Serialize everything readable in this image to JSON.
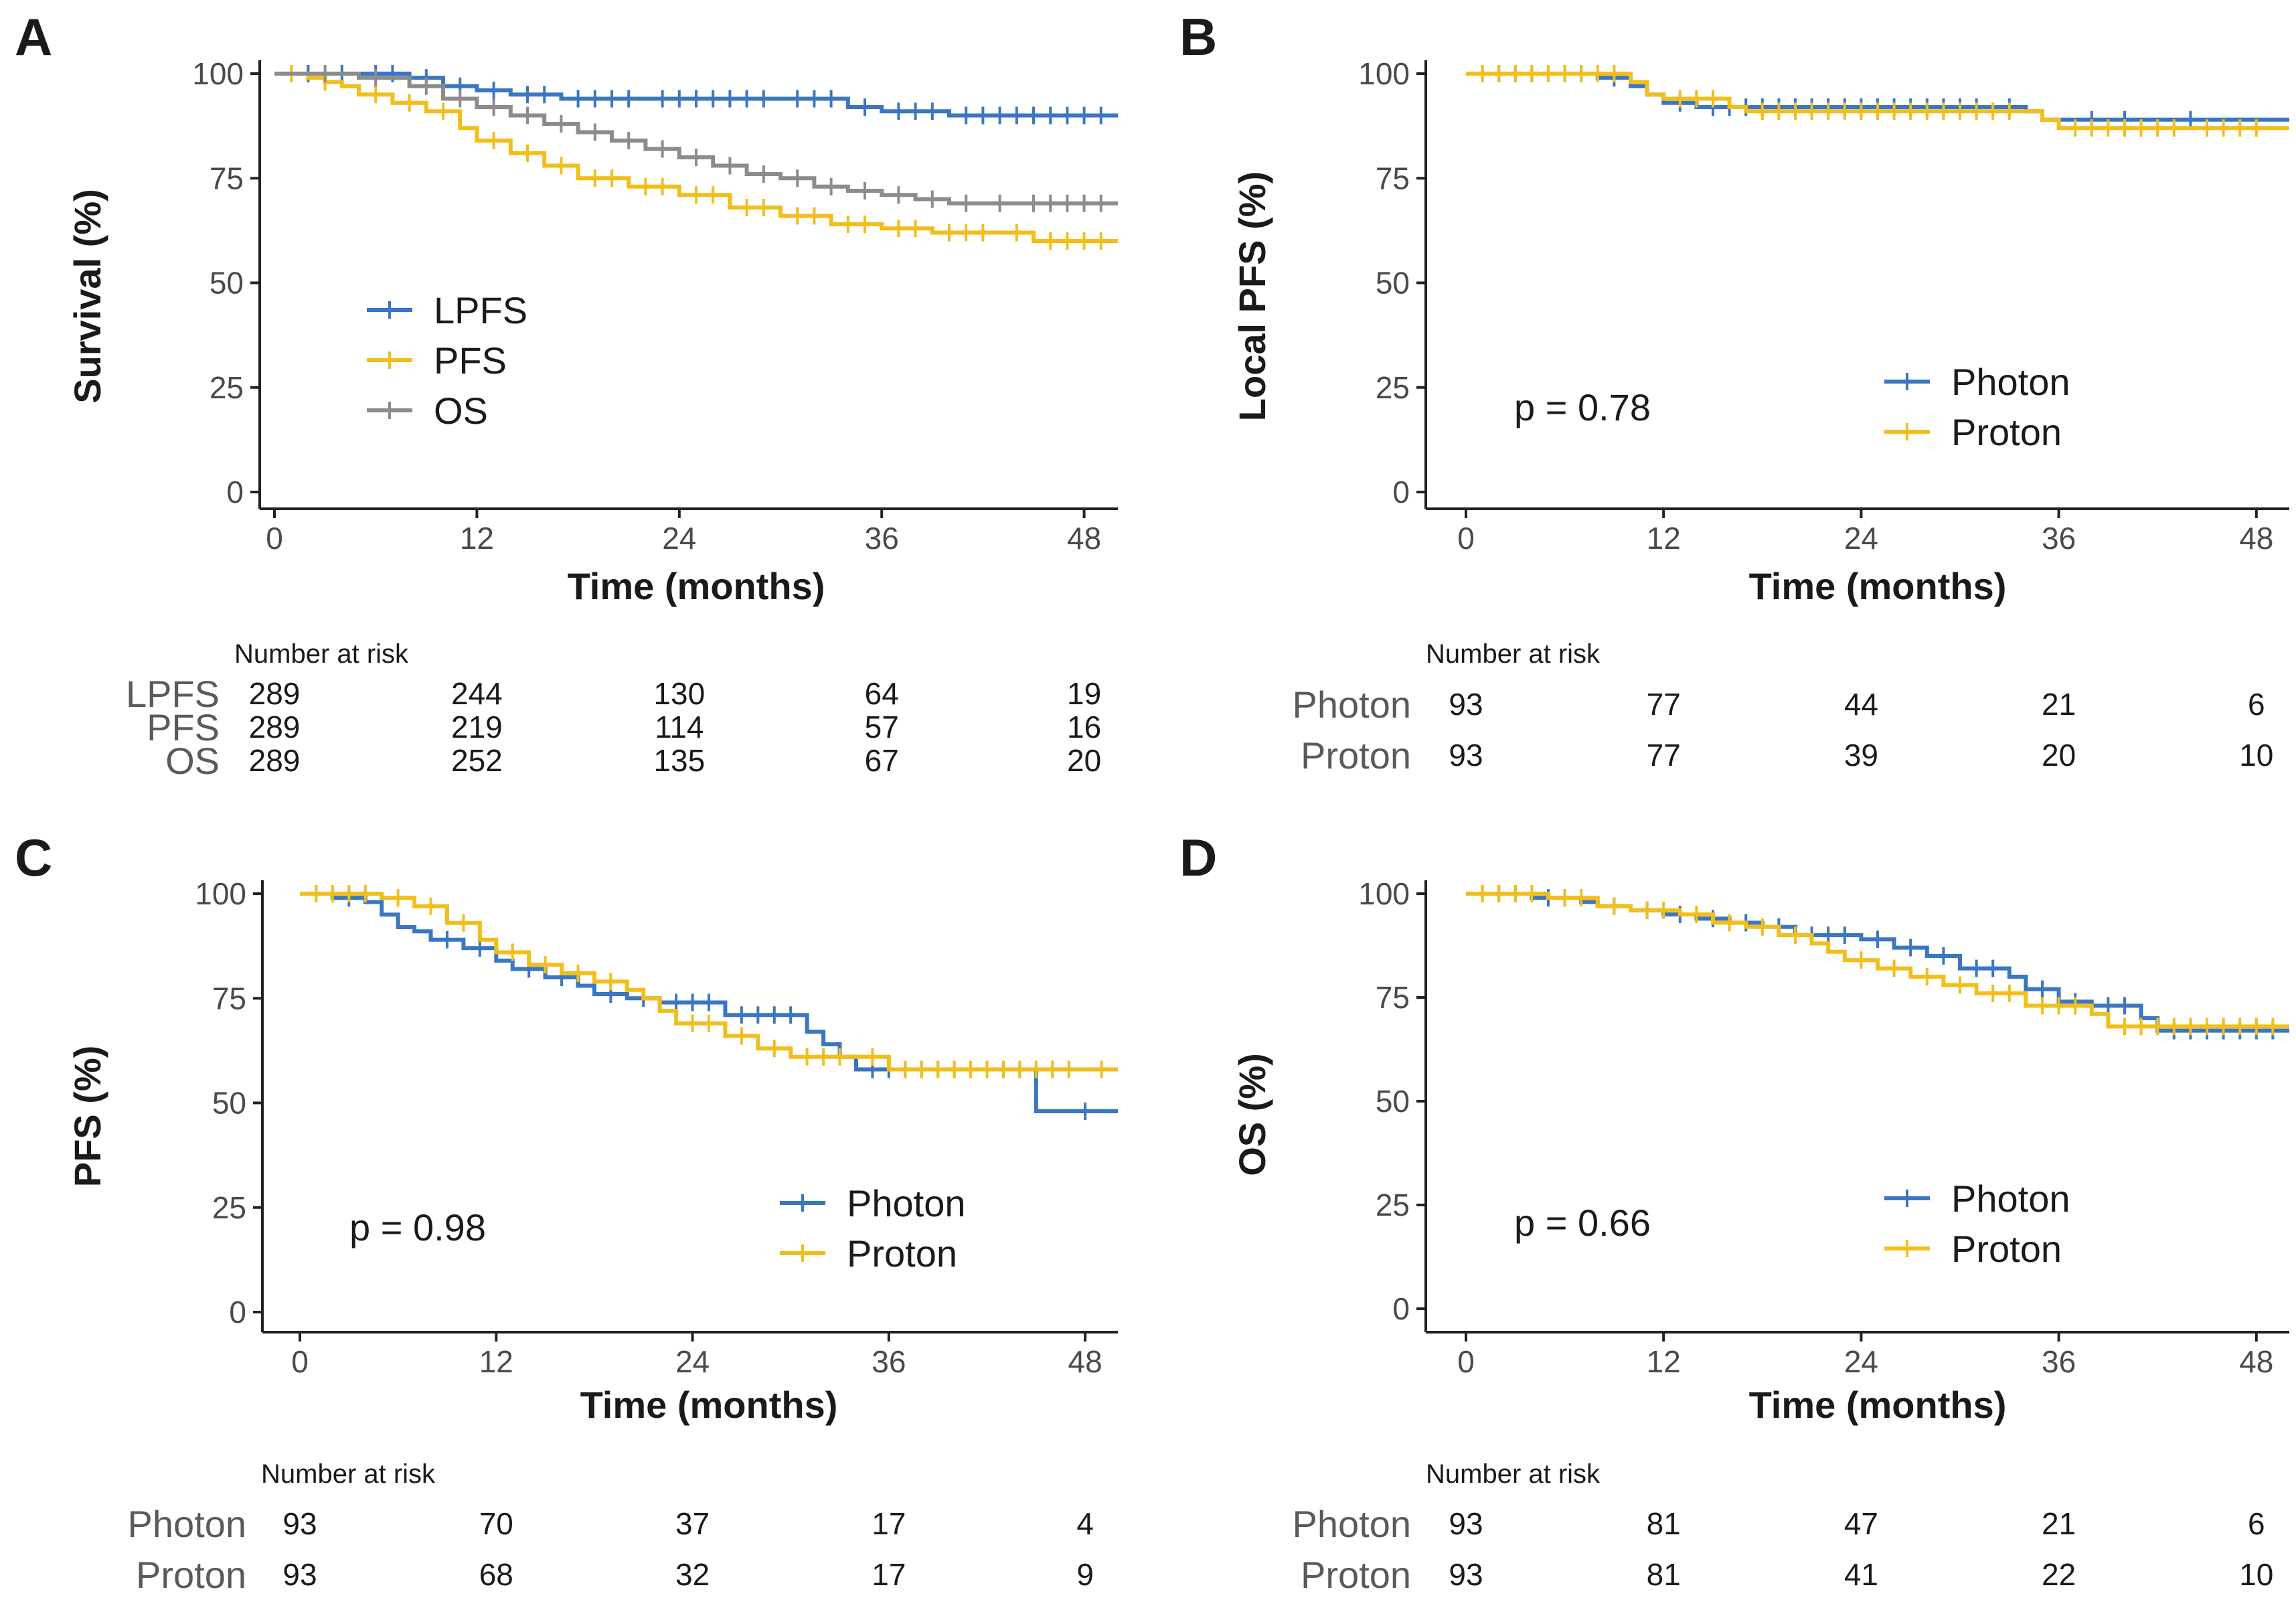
{
  "colors": {
    "blue": "#3a76c2",
    "yellow": "#f2be1a",
    "gray": "#8c8c8c",
    "axis": "#222222"
  },
  "chart_data": [
    {
      "panel": "A",
      "type": "line",
      "subtype": "kaplan-meier",
      "xlabel": "Time (months)",
      "ylabel": "Survival (%)",
      "xlim": [
        0,
        50
      ],
      "ylim": [
        0,
        100
      ],
      "xticks": [
        0,
        12,
        24,
        36,
        48
      ],
      "yticks": [
        0,
        25,
        50,
        75,
        100
      ],
      "legend_position": "center-left",
      "series": [
        {
          "name": "LPFS",
          "color": "blue",
          "x": [
            0,
            5,
            8,
            10,
            12,
            14,
            17,
            22,
            30,
            34,
            36,
            40,
            50
          ],
          "y": [
            100,
            100,
            99,
            97,
            96,
            95,
            94,
            94,
            94,
            92,
            91,
            90,
            90
          ],
          "censor_x": [
            2,
            4,
            6,
            7,
            9,
            11,
            13,
            15,
            16,
            18,
            19,
            20,
            21,
            23,
            24,
            25,
            26,
            27,
            28,
            29,
            31,
            32,
            33,
            35,
            37,
            38,
            39,
            41,
            42,
            43,
            44,
            45,
            46,
            47,
            48,
            49
          ]
        },
        {
          "name": "PFS",
          "color": "yellow",
          "x": [
            0,
            2,
            3,
            4,
            5,
            7,
            9,
            11,
            12,
            14,
            16,
            18,
            21,
            24,
            27,
            30,
            33,
            36,
            39,
            43,
            45,
            50
          ],
          "y": [
            100,
            99,
            98,
            97,
            95,
            93,
            91,
            87,
            84,
            81,
            78,
            75,
            73,
            71,
            68,
            66,
            64,
            63,
            62,
            62,
            60,
            60
          ],
          "censor_x": [
            1,
            3,
            6,
            8,
            10,
            13,
            15,
            17,
            19,
            20,
            22,
            23,
            25,
            26,
            28,
            29,
            31,
            32,
            34,
            35,
            37,
            38,
            40,
            41,
            42,
            44,
            46,
            47,
            48,
            49
          ]
        },
        {
          "name": "OS",
          "color": "gray",
          "x": [
            0,
            5,
            8,
            10,
            12,
            14,
            16,
            18,
            20,
            22,
            24,
            26,
            28,
            30,
            32,
            34,
            36,
            38,
            40,
            42,
            44,
            50
          ],
          "y": [
            100,
            99,
            97,
            94,
            92,
            90,
            88,
            86,
            84,
            82,
            80,
            78,
            76,
            75,
            73,
            72,
            71,
            70,
            69,
            69,
            69,
            69
          ],
          "censor_x": [
            3,
            6,
            9,
            11,
            13,
            15,
            17,
            19,
            21,
            23,
            25,
            27,
            29,
            31,
            33,
            35,
            37,
            39,
            41,
            43,
            45,
            46,
            47,
            48,
            49
          ]
        }
      ],
      "risk_table": {
        "title": "Number at risk",
        "times": [
          0,
          12,
          24,
          36,
          48
        ],
        "rows": [
          {
            "label": "LPFS",
            "values": [
              "289",
              "244",
              "130",
              "64",
              "19"
            ]
          },
          {
            "label": "PFS",
            "values": [
              "289",
              "219",
              "114",
              "57",
              "16"
            ]
          },
          {
            "label": "OS",
            "values": [
              "289",
              "252",
              "135",
              "67",
              "20"
            ]
          }
        ]
      }
    },
    {
      "panel": "B",
      "type": "line",
      "subtype": "kaplan-meier",
      "xlabel": "Time (months)",
      "ylabel": "Local PFS (%)",
      "xlim": [
        0,
        50
      ],
      "ylim": [
        0,
        100
      ],
      "xticks": [
        0,
        12,
        24,
        36,
        48
      ],
      "yticks": [
        0,
        25,
        50,
        75,
        100
      ],
      "pvalue": "p = 0.78",
      "legend_position": "bottom-right",
      "series": [
        {
          "name": "Photon",
          "color": "blue",
          "x": [
            0,
            8,
            10,
            11,
            12,
            14,
            34,
            35,
            50
          ],
          "y": [
            100,
            99,
            97,
            95,
            93,
            92,
            91,
            89,
            89
          ],
          "censor_x": [
            1,
            2,
            3,
            4,
            5,
            6,
            7,
            9,
            13,
            15,
            16,
            17,
            18,
            19,
            20,
            21,
            22,
            23,
            24,
            25,
            26,
            27,
            28,
            29,
            30,
            31,
            33,
            38,
            40,
            44
          ]
        },
        {
          "name": "Proton",
          "color": "yellow",
          "x": [
            0,
            10,
            11,
            12,
            16,
            17,
            34,
            35,
            36,
            50
          ],
          "y": [
            100,
            98,
            95,
            94,
            92,
            91,
            91,
            89,
            87,
            87
          ],
          "censor_x": [
            1,
            2,
            3,
            4,
            5,
            6,
            7,
            8,
            9,
            13,
            14,
            15,
            18,
            19,
            20,
            21,
            22,
            23,
            24,
            25,
            26,
            27,
            28,
            29,
            30,
            31,
            32,
            33,
            37,
            38,
            39,
            40,
            41,
            42,
            43,
            45,
            46,
            47,
            48
          ]
        }
      ],
      "risk_table": {
        "title": "Number at risk",
        "times": [
          0,
          12,
          24,
          36,
          48
        ],
        "rows": [
          {
            "label": "Photon",
            "values": [
              "93",
              "77",
              "44",
              "21",
              "6"
            ]
          },
          {
            "label": "Proton",
            "values": [
              "93",
              "77",
              "39",
              "20",
              "10"
            ]
          }
        ]
      }
    },
    {
      "panel": "C",
      "type": "line",
      "subtype": "kaplan-meier",
      "xlabel": "Time (months)",
      "ylabel": "PFS (%)",
      "xlim": [
        0,
        50
      ],
      "ylim": [
        0,
        100
      ],
      "xticks": [
        0,
        12,
        24,
        36,
        48
      ],
      "yticks": [
        0,
        25,
        50,
        75,
        100
      ],
      "pvalue": "p = 0.98",
      "legend_position": "bottom-right",
      "series": [
        {
          "name": "Photon",
          "color": "blue",
          "x": [
            0,
            2,
            4,
            5,
            6,
            7,
            8,
            10,
            12,
            13,
            15,
            17,
            18,
            20,
            22,
            26,
            31,
            32,
            33,
            34,
            45,
            50
          ],
          "y": [
            100,
            99,
            98,
            95,
            92,
            91,
            89,
            87,
            84,
            82,
            80,
            78,
            76,
            75,
            74,
            71,
            67,
            64,
            61,
            58,
            48,
            48
          ],
          "censor_x": [
            3,
            9,
            11,
            14,
            16,
            19,
            21,
            23,
            24,
            25,
            27,
            28,
            29,
            30,
            35,
            36,
            37,
            38,
            39,
            40,
            41,
            42,
            43,
            44,
            48
          ]
        },
        {
          "name": "Proton",
          "color": "yellow",
          "x": [
            0,
            5,
            7,
            9,
            11,
            12,
            14,
            16,
            18,
            20,
            21,
            22,
            23,
            26,
            28,
            30,
            34,
            36,
            50
          ],
          "y": [
            100,
            99,
            97,
            93,
            89,
            86,
            83,
            81,
            79,
            77,
            75,
            72,
            69,
            66,
            63,
            61,
            61,
            58,
            58
          ],
          "censor_x": [
            1,
            2,
            3,
            4,
            6,
            8,
            10,
            13,
            15,
            17,
            19,
            24,
            25,
            27,
            29,
            31,
            32,
            33,
            35,
            37,
            38,
            39,
            40,
            41,
            42,
            43,
            44,
            45,
            46,
            47,
            49
          ]
        }
      ],
      "risk_table": {
        "title": "Number at risk",
        "times": [
          0,
          12,
          24,
          36,
          48
        ],
        "rows": [
          {
            "label": "Photon",
            "values": [
              "93",
              "70",
              "37",
              "17",
              "4"
            ]
          },
          {
            "label": "Proton",
            "values": [
              "93",
              "68",
              "32",
              "17",
              "9"
            ]
          }
        ]
      }
    },
    {
      "panel": "D",
      "type": "line",
      "subtype": "kaplan-meier",
      "xlabel": "Time (months)",
      "ylabel": "OS (%)",
      "xlim": [
        0,
        50
      ],
      "ylim": [
        0,
        100
      ],
      "xticks": [
        0,
        12,
        24,
        36,
        48
      ],
      "yticks": [
        0,
        25,
        50,
        75,
        100
      ],
      "pvalue": "p = 0.66",
      "legend_position": "bottom-right",
      "series": [
        {
          "name": "Photon",
          "color": "blue",
          "x": [
            0,
            4,
            7,
            8,
            10,
            12,
            14,
            16,
            18,
            20,
            24,
            26,
            28,
            30,
            33,
            34,
            36,
            38,
            41,
            42,
            50
          ],
          "y": [
            100,
            99,
            98,
            97,
            96,
            95,
            94,
            93,
            92,
            90,
            89,
            87,
            85,
            82,
            80,
            77,
            74,
            73,
            70,
            67,
            67
          ],
          "censor_x": [
            1,
            2,
            3,
            5,
            6,
            9,
            11,
            13,
            15,
            17,
            19,
            21,
            22,
            23,
            25,
            27,
            29,
            31,
            32,
            35,
            37,
            39,
            40,
            43,
            44,
            45,
            46,
            47,
            48,
            49
          ]
        },
        {
          "name": "Proton",
          "color": "yellow",
          "x": [
            0,
            5,
            8,
            10,
            13,
            15,
            17,
            19,
            21,
            22,
            23,
            25,
            27,
            29,
            31,
            34,
            38,
            39,
            50
          ],
          "y": [
            100,
            99,
            97,
            96,
            95,
            93,
            92,
            90,
            88,
            86,
            84,
            82,
            80,
            78,
            76,
            73,
            71,
            68,
            68
          ],
          "censor_x": [
            1,
            2,
            3,
            4,
            6,
            7,
            9,
            11,
            12,
            14,
            16,
            18,
            20,
            24,
            26,
            28,
            30,
            32,
            33,
            35,
            36,
            37,
            40,
            41,
            42,
            43,
            44,
            45,
            46,
            47,
            48,
            49
          ]
        }
      ],
      "risk_table": {
        "title": "Number at risk",
        "times": [
          0,
          12,
          24,
          36,
          48
        ],
        "rows": [
          {
            "label": "Photon",
            "values": [
              "93",
              "81",
              "47",
              "21",
              "6"
            ]
          },
          {
            "label": "Proton",
            "values": [
              "93",
              "81",
              "41",
              "22",
              "10"
            ]
          }
        ]
      }
    }
  ]
}
